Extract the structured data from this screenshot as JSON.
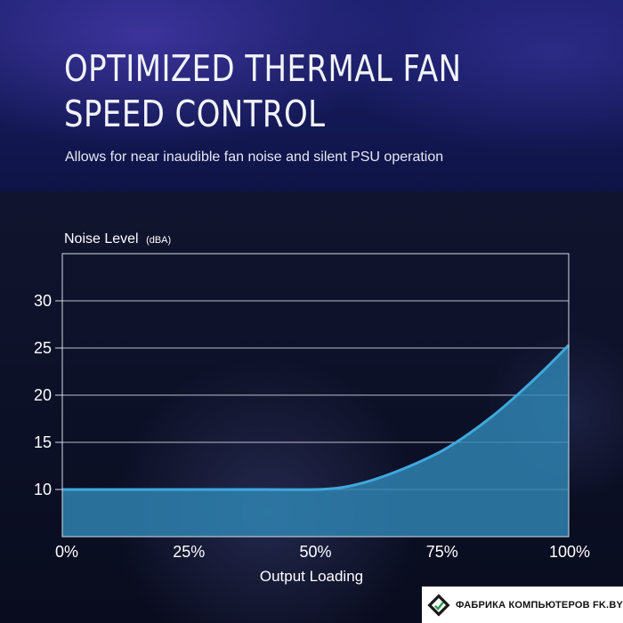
{
  "header": {
    "title_lines": [
      "OPTIMIZED THERMAL FAN",
      "SPEED CONTROL"
    ],
    "subtitle": "Allows for near inaudible fan noise and silent PSU operation"
  },
  "colors": {
    "curve": "#3fa9dd",
    "fill": "#2f86b4",
    "grid": "#d8dbe6",
    "text": "#ffffff"
  },
  "chart_data": {
    "type": "area",
    "ylabel": "Noise Level",
    "ylabel_unit": "(dBA)",
    "xlabel": "Output Loading",
    "x": [
      0,
      10,
      20,
      30,
      40,
      50,
      55,
      60,
      65,
      70,
      75,
      80,
      85,
      90,
      95,
      100
    ],
    "values": [
      10,
      10,
      10,
      10,
      10,
      10,
      10.2,
      10.8,
      11.7,
      12.8,
      14.1,
      15.8,
      17.8,
      20.1,
      22.6,
      25.3
    ],
    "xlim": [
      0,
      100
    ],
    "ylim": [
      5,
      35
    ],
    "yticks": [
      10,
      15,
      20,
      25,
      30
    ],
    "ytick_labels": [
      "10",
      "15",
      "20",
      "25",
      "30"
    ],
    "xticks": [
      0,
      25,
      50,
      75,
      100
    ],
    "xtick_labels": [
      "0%",
      "25%",
      "50%",
      "75%",
      "100%"
    ],
    "grid": true
  },
  "watermark": {
    "text": "ФАБРИКА КОМПЬЮТЕРОВ FK.BY"
  }
}
